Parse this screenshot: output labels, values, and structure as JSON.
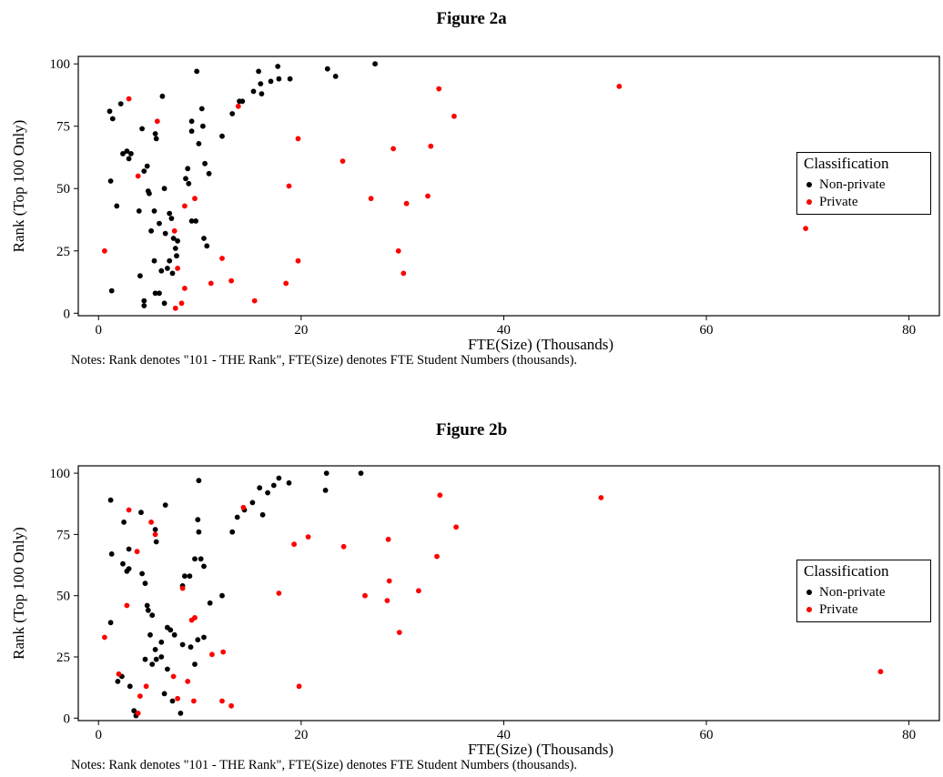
{
  "chart_data": [
    {
      "type": "scatter",
      "title": "Figure 2a",
      "xlabel": "FTE(Size) (Thousands)",
      "ylabel": "Rank (Top 100 Only)",
      "xlim": [
        -2,
        83
      ],
      "ylim": [
        -1,
        103
      ],
      "xticks": [
        0,
        20,
        40,
        60,
        80
      ],
      "yticks": [
        0,
        25,
        50,
        75,
        100
      ],
      "grid": false,
      "legend": {
        "title": "Classification",
        "position": "right",
        "entries": [
          "Non-private",
          "Private"
        ]
      },
      "notes": "Notes: Rank denotes \"101 - THE Rank\", FTE(Size) denotes FTE Student Numbers (thousands).",
      "series": [
        {
          "name": "Non-private",
          "color": "#000000",
          "points": [
            [
              1.1,
              81
            ],
            [
              1.4,
              78
            ],
            [
              1.2,
              53
            ],
            [
              1.3,
              9
            ],
            [
              1.8,
              43
            ],
            [
              2.2,
              84
            ],
            [
              2.8,
              65
            ],
            [
              3.2,
              64
            ],
            [
              2.4,
              64
            ],
            [
              3.0,
              62
            ],
            [
              4.3,
              74
            ],
            [
              4.8,
              59
            ],
            [
              4.5,
              57
            ],
            [
              4.9,
              49
            ],
            [
              5.0,
              48
            ],
            [
              5.6,
              72
            ],
            [
              5.7,
              70
            ],
            [
              6.3,
              87
            ],
            [
              6.5,
              50
            ],
            [
              7.0,
              40
            ],
            [
              7.2,
              38
            ],
            [
              4.0,
              41
            ],
            [
              5.5,
              41
            ],
            [
              6.0,
              36
            ],
            [
              5.2,
              33
            ],
            [
              6.6,
              32
            ],
            [
              7.4,
              30
            ],
            [
              7.8,
              29
            ],
            [
              7.6,
              26
            ],
            [
              7.7,
              23
            ],
            [
              7.0,
              21
            ],
            [
              5.5,
              21
            ],
            [
              6.8,
              18
            ],
            [
              7.3,
              16
            ],
            [
              6.2,
              17
            ],
            [
              4.1,
              15
            ],
            [
              4.5,
              5
            ],
            [
              4.5,
              3
            ],
            [
              5.6,
              8
            ],
            [
              6.0,
              8
            ],
            [
              6.5,
              4
            ],
            [
              8.6,
              54
            ],
            [
              8.8,
              58
            ],
            [
              8.9,
              52
            ],
            [
              9.2,
              77
            ],
            [
              9.2,
              73
            ],
            [
              9.6,
              37
            ],
            [
              9.2,
              37
            ],
            [
              9.9,
              68
            ],
            [
              9.7,
              97
            ],
            [
              10.2,
              82
            ],
            [
              10.5,
              60
            ],
            [
              10.9,
              56
            ],
            [
              10.4,
              30
            ],
            [
              10.7,
              27
            ],
            [
              10.3,
              75
            ],
            [
              12.2,
              71
            ],
            [
              13.2,
              80
            ],
            [
              13.9,
              85
            ],
            [
              14.2,
              85
            ],
            [
              15.3,
              89
            ],
            [
              16.0,
              92
            ],
            [
              16.1,
              88
            ],
            [
              15.8,
              97
            ],
            [
              17.0,
              93
            ],
            [
              17.7,
              99
            ],
            [
              17.8,
              94
            ],
            [
              18.9,
              94
            ],
            [
              22.6,
              98
            ],
            [
              23.4,
              95
            ],
            [
              27.3,
              100
            ]
          ]
        },
        {
          "name": "Private",
          "color": "#ff0000",
          "points": [
            [
              0.6,
              25
            ],
            [
              3.0,
              86
            ],
            [
              3.9,
              55
            ],
            [
              5.8,
              77
            ],
            [
              7.5,
              33
            ],
            [
              7.8,
              18
            ],
            [
              7.6,
              2
            ],
            [
              8.2,
              4
            ],
            [
              8.5,
              10
            ],
            [
              8.5,
              43
            ],
            [
              9.5,
              46
            ],
            [
              11.1,
              12
            ],
            [
              12.2,
              22
            ],
            [
              13.1,
              13
            ],
            [
              13.8,
              83
            ],
            [
              15.4,
              5
            ],
            [
              18.5,
              12
            ],
            [
              18.8,
              51
            ],
            [
              19.7,
              21
            ],
            [
              19.7,
              70
            ],
            [
              24.1,
              61
            ],
            [
              26.9,
              46
            ],
            [
              29.1,
              66
            ],
            [
              29.6,
              25
            ],
            [
              30.1,
              16
            ],
            [
              30.4,
              44
            ],
            [
              32.5,
              47
            ],
            [
              32.8,
              67
            ],
            [
              33.6,
              90
            ],
            [
              35.1,
              79
            ],
            [
              51.4,
              91
            ],
            [
              69.8,
              34
            ]
          ]
        }
      ]
    },
    {
      "type": "scatter",
      "title": "Figure 2b",
      "xlabel": "FTE(Size) (Thousands)",
      "ylabel": "Rank (Top 100 Only)",
      "xlim": [
        -2,
        83
      ],
      "ylim": [
        -1,
        103
      ],
      "xticks": [
        0,
        20,
        40,
        60,
        80
      ],
      "yticks": [
        0,
        25,
        50,
        75,
        100
      ],
      "grid": false,
      "legend": {
        "title": "Classification",
        "position": "right",
        "entries": [
          "Non-private",
          "Private"
        ]
      },
      "notes": "Notes: Rank denotes \"101 - THE Rank\", FTE(Size) denotes FTE Student Numbers (thousands).",
      "series": [
        {
          "name": "Non-private",
          "color": "#000000",
          "points": [
            [
              1.2,
              89
            ],
            [
              1.3,
              67
            ],
            [
              1.2,
              39
            ],
            [
              1.9,
              15
            ],
            [
              2.3,
              17
            ],
            [
              2.5,
              80
            ],
            [
              3.0,
              69
            ],
            [
              2.4,
              63
            ],
            [
              3.0,
              61
            ],
            [
              2.8,
              60
            ],
            [
              3.1,
              13
            ],
            [
              4.2,
              84
            ],
            [
              4.3,
              59
            ],
            [
              4.6,
              55
            ],
            [
              4.8,
              46
            ],
            [
              4.9,
              44
            ],
            [
              5.3,
              42
            ],
            [
              5.6,
              77
            ],
            [
              5.7,
              72
            ],
            [
              6.6,
              87
            ],
            [
              5.1,
              34
            ],
            [
              5.6,
              28
            ],
            [
              5.7,
              24
            ],
            [
              5.3,
              22
            ],
            [
              4.6,
              24
            ],
            [
              6.2,
              25
            ],
            [
              6.2,
              31
            ],
            [
              6.8,
              37
            ],
            [
              7.1,
              36
            ],
            [
              7.5,
              34
            ],
            [
              6.8,
              20
            ],
            [
              6.5,
              10
            ],
            [
              7.3,
              7
            ],
            [
              3.7,
              1
            ],
            [
              3.5,
              3
            ],
            [
              8.1,
              2
            ],
            [
              8.5,
              58
            ],
            [
              8.3,
              54
            ],
            [
              9.0,
              58
            ],
            [
              9.1,
              29
            ],
            [
              8.3,
              30
            ],
            [
              9.5,
              22
            ],
            [
              9.5,
              65
            ],
            [
              10.1,
              65
            ],
            [
              9.8,
              81
            ],
            [
              9.9,
              76
            ],
            [
              9.9,
              97
            ],
            [
              9.8,
              32
            ],
            [
              10.4,
              33
            ],
            [
              10.4,
              62
            ],
            [
              11.0,
              47
            ],
            [
              12.2,
              50
            ],
            [
              13.2,
              76
            ],
            [
              13.7,
              82
            ],
            [
              14.4,
              85
            ],
            [
              15.2,
              88
            ],
            [
              15.9,
              94
            ],
            [
              16.2,
              83
            ],
            [
              16.7,
              92
            ],
            [
              17.3,
              95
            ],
            [
              17.8,
              98
            ],
            [
              18.8,
              96
            ],
            [
              22.4,
              93
            ],
            [
              22.5,
              100
            ],
            [
              25.9,
              100
            ]
          ]
        },
        {
          "name": "Private",
          "color": "#ff0000",
          "points": [
            [
              0.6,
              33
            ],
            [
              2.0,
              18
            ],
            [
              2.8,
              46
            ],
            [
              3.0,
              85
            ],
            [
              3.8,
              68
            ],
            [
              3.9,
              2
            ],
            [
              4.1,
              9
            ],
            [
              4.7,
              13
            ],
            [
              5.2,
              80
            ],
            [
              5.6,
              75
            ],
            [
              7.4,
              17
            ],
            [
              7.8,
              8
            ],
            [
              8.3,
              53
            ],
            [
              8.8,
              15
            ],
            [
              9.2,
              40
            ],
            [
              9.5,
              41
            ],
            [
              9.4,
              7
            ],
            [
              11.2,
              26
            ],
            [
              12.2,
              7
            ],
            [
              12.3,
              27
            ],
            [
              13.1,
              5
            ],
            [
              14.3,
              86
            ],
            [
              17.8,
              51
            ],
            [
              19.3,
              71
            ],
            [
              19.8,
              13
            ],
            [
              20.7,
              74
            ],
            [
              24.2,
              70
            ],
            [
              26.3,
              50
            ],
            [
              28.5,
              48
            ],
            [
              28.6,
              73
            ],
            [
              28.7,
              56
            ],
            [
              29.7,
              35
            ],
            [
              31.6,
              52
            ],
            [
              33.4,
              66
            ],
            [
              33.7,
              91
            ],
            [
              35.3,
              78
            ],
            [
              49.6,
              90
            ],
            [
              77.2,
              19
            ]
          ]
        }
      ]
    }
  ]
}
